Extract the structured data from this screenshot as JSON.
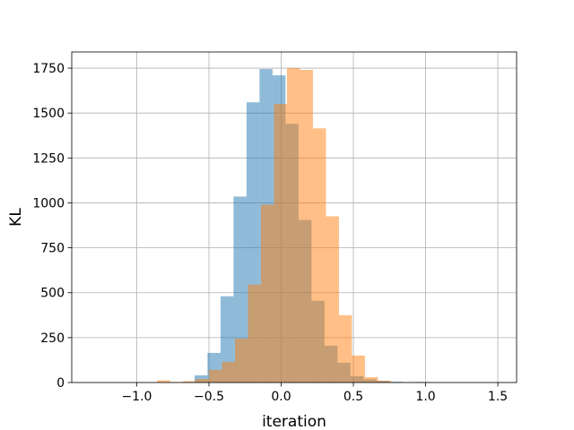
{
  "chart_data": {
    "type": "bar",
    "title": "",
    "xlabel": "iteration",
    "ylabel": "KL",
    "xlim": [
      -1.45,
      1.63
    ],
    "ylim": [
      0,
      1840
    ],
    "grid": true,
    "xticks": [
      -1.0,
      -0.5,
      0.0,
      0.5,
      1.0,
      1.5
    ],
    "xtick_labels": [
      "−1.0",
      "−0.5",
      "0.0",
      "0.5",
      "1.0",
      "1.5"
    ],
    "yticks": [
      0,
      250,
      500,
      750,
      1000,
      1250,
      1500,
      1750
    ],
    "ytick_labels": [
      "0",
      "250",
      "500",
      "750",
      "1000",
      "1250",
      "1500",
      "1750"
    ],
    "series": [
      {
        "color": "#1f77b4",
        "opacity": 0.5,
        "bins": [
          {
            "x0": -0.6,
            "x1": -0.51,
            "y": 40
          },
          {
            "x0": -0.51,
            "x1": -0.42,
            "y": 165
          },
          {
            "x0": -0.42,
            "x1": -0.33,
            "y": 480
          },
          {
            "x0": -0.33,
            "x1": -0.24,
            "y": 1035
          },
          {
            "x0": -0.24,
            "x1": -0.15,
            "y": 1560
          },
          {
            "x0": -0.15,
            "x1": -0.06,
            "y": 1745
          },
          {
            "x0": -0.06,
            "x1": 0.03,
            "y": 1710
          },
          {
            "x0": 0.03,
            "x1": 0.12,
            "y": 1440
          },
          {
            "x0": 0.12,
            "x1": 0.21,
            "y": 905
          },
          {
            "x0": 0.21,
            "x1": 0.3,
            "y": 455
          },
          {
            "x0": 0.3,
            "x1": 0.39,
            "y": 205
          },
          {
            "x0": 0.39,
            "x1": 0.48,
            "y": 110
          },
          {
            "x0": 0.48,
            "x1": 0.57,
            "y": 35
          },
          {
            "x0": 0.57,
            "x1": 0.66,
            "y": 18
          },
          {
            "x0": 0.66,
            "x1": 0.75,
            "y": 10
          },
          {
            "x0": 0.75,
            "x1": 0.84,
            "y": 4
          },
          {
            "x0": 0.84,
            "x1": 0.93,
            "y": 2
          },
          {
            "x0": 0.93,
            "x1": 1.03,
            "y": 3
          }
        ]
      },
      {
        "color": "#ff7f0e",
        "opacity": 0.5,
        "bins": [
          {
            "x0": -0.86,
            "x1": -0.77,
            "y": 12
          },
          {
            "x0": -0.77,
            "x1": -0.68,
            "y": 3
          },
          {
            "x0": -0.68,
            "x1": -0.59,
            "y": 8
          },
          {
            "x0": -0.59,
            "x1": -0.5,
            "y": 20
          },
          {
            "x0": -0.5,
            "x1": -0.41,
            "y": 70
          },
          {
            "x0": -0.41,
            "x1": -0.32,
            "y": 115
          },
          {
            "x0": -0.32,
            "x1": -0.23,
            "y": 245
          },
          {
            "x0": -0.23,
            "x1": -0.14,
            "y": 545
          },
          {
            "x0": -0.14,
            "x1": -0.05,
            "y": 990
          },
          {
            "x0": -0.05,
            "x1": 0.04,
            "y": 1550
          },
          {
            "x0": 0.04,
            "x1": 0.13,
            "y": 1750
          },
          {
            "x0": 0.13,
            "x1": 0.22,
            "y": 1740
          },
          {
            "x0": 0.22,
            "x1": 0.31,
            "y": 1415
          },
          {
            "x0": 0.31,
            "x1": 0.4,
            "y": 925
          },
          {
            "x0": 0.4,
            "x1": 0.49,
            "y": 375
          },
          {
            "x0": 0.49,
            "x1": 0.58,
            "y": 150
          },
          {
            "x0": 0.58,
            "x1": 0.67,
            "y": 30
          },
          {
            "x0": 0.67,
            "x1": 0.76,
            "y": 10
          }
        ]
      }
    ]
  }
}
